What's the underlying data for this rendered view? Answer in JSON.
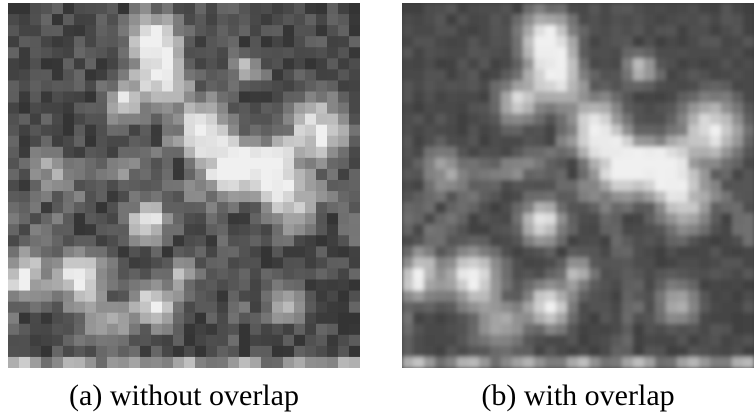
{
  "figure": {
    "panels": [
      {
        "caption": "(a) without overlap",
        "rendering": "blocky"
      },
      {
        "caption": "(b) with overlap",
        "rendering": "smooth"
      }
    ]
  },
  "colors": {
    "background": "#ffffff",
    "image_dark": "#2c2c2c",
    "image_mid": "#6e6e6e",
    "image_bright": "#f2f2f2",
    "caption_text": "#000000"
  }
}
